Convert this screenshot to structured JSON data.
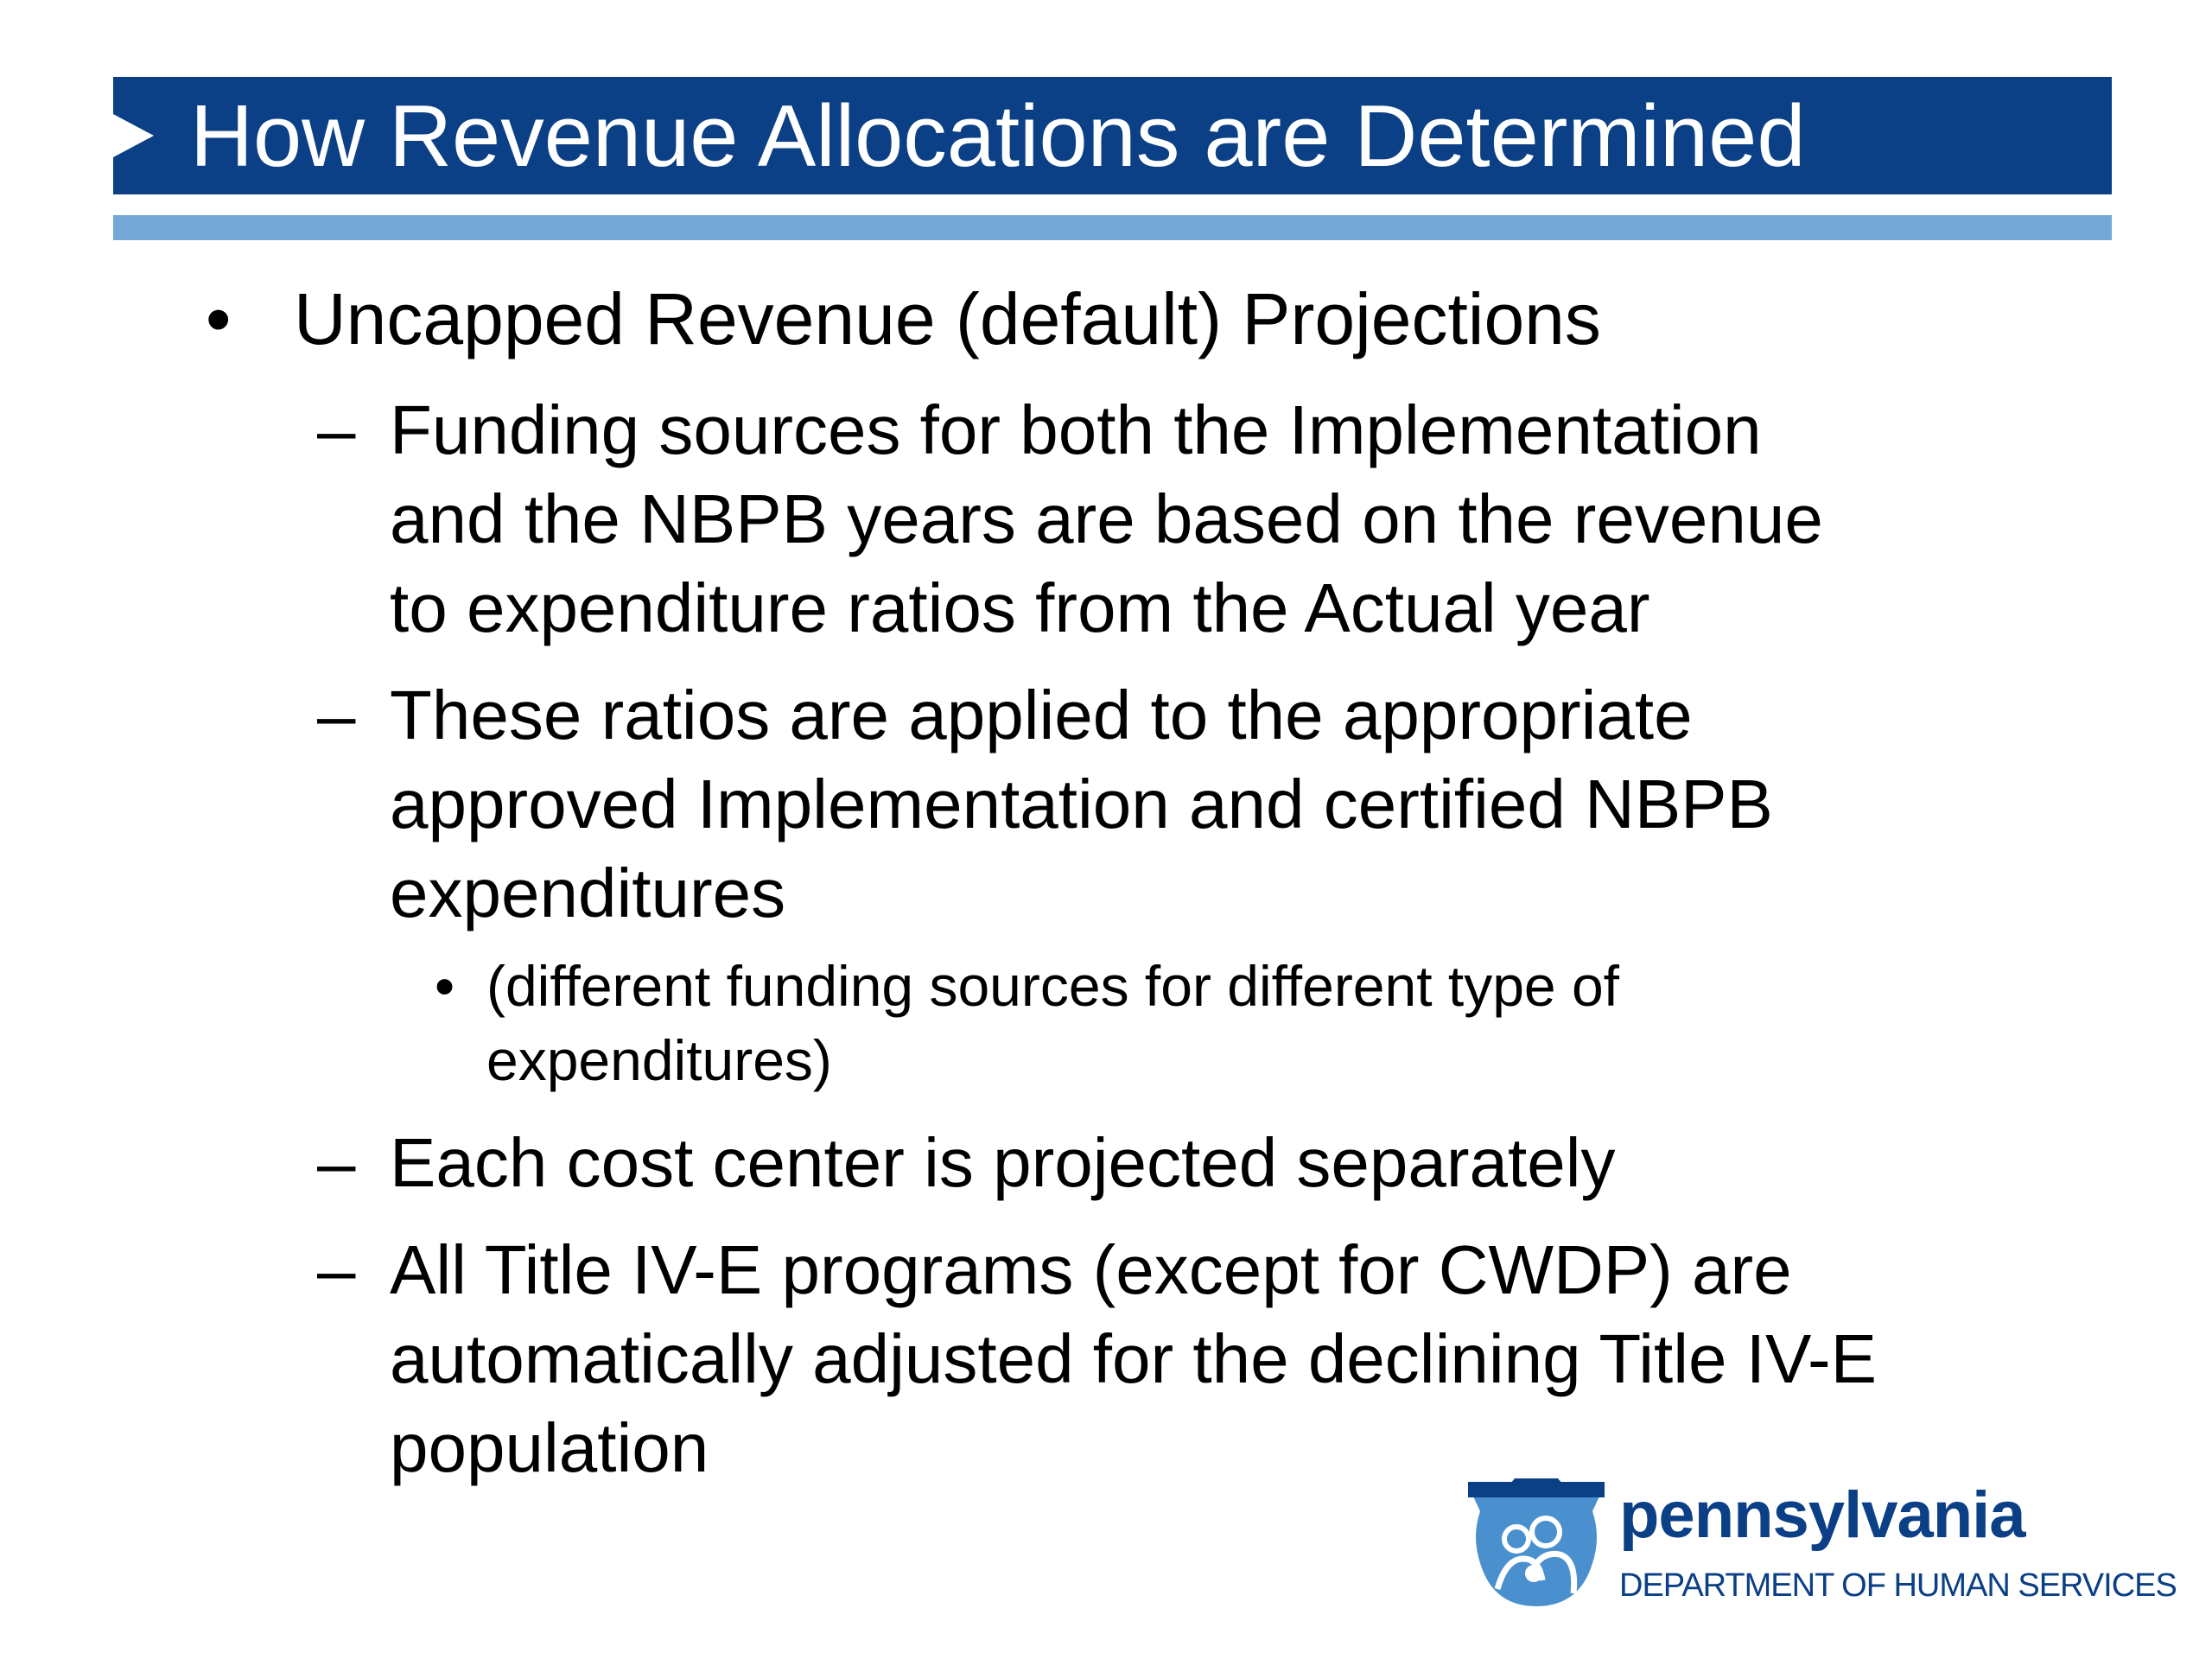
{
  "slide": {
    "title": "How Revenue Allocations are Determined",
    "bullets": {
      "b1": "Uncapped Revenue (default) Projections",
      "s1": [
        "Funding sources for both the Implementation",
        "and the NBPB years are based on the revenue",
        "to expenditure ratios from the Actual year"
      ],
      "s2": [
        "These ratios are applied to the appropriate",
        "approved Implementation and certified NBPB",
        "expenditures"
      ],
      "s2_sub": [
        "(different funding sources for different type of",
        "expenditures)"
      ],
      "s3": [
        "Each cost center is projected separately"
      ],
      "s4": [
        "All Title IV-E programs (except for CWDP) are",
        "automatically adjusted for the declining Title IV-E",
        "population"
      ]
    },
    "markers": {
      "bullet": "•",
      "dash": "–",
      "sub_bullet": "•"
    }
  },
  "logo": {
    "name": "pennsylvania",
    "department": "DEPARTMENT OF HUMAN SERVICES",
    "icon": "keystone-family-icon"
  },
  "colors": {
    "title_bar": "#0b3f86",
    "title_underline": "#74a8d6",
    "logo_blue": "#0b3f86",
    "logo_light": "#4a90cf"
  }
}
